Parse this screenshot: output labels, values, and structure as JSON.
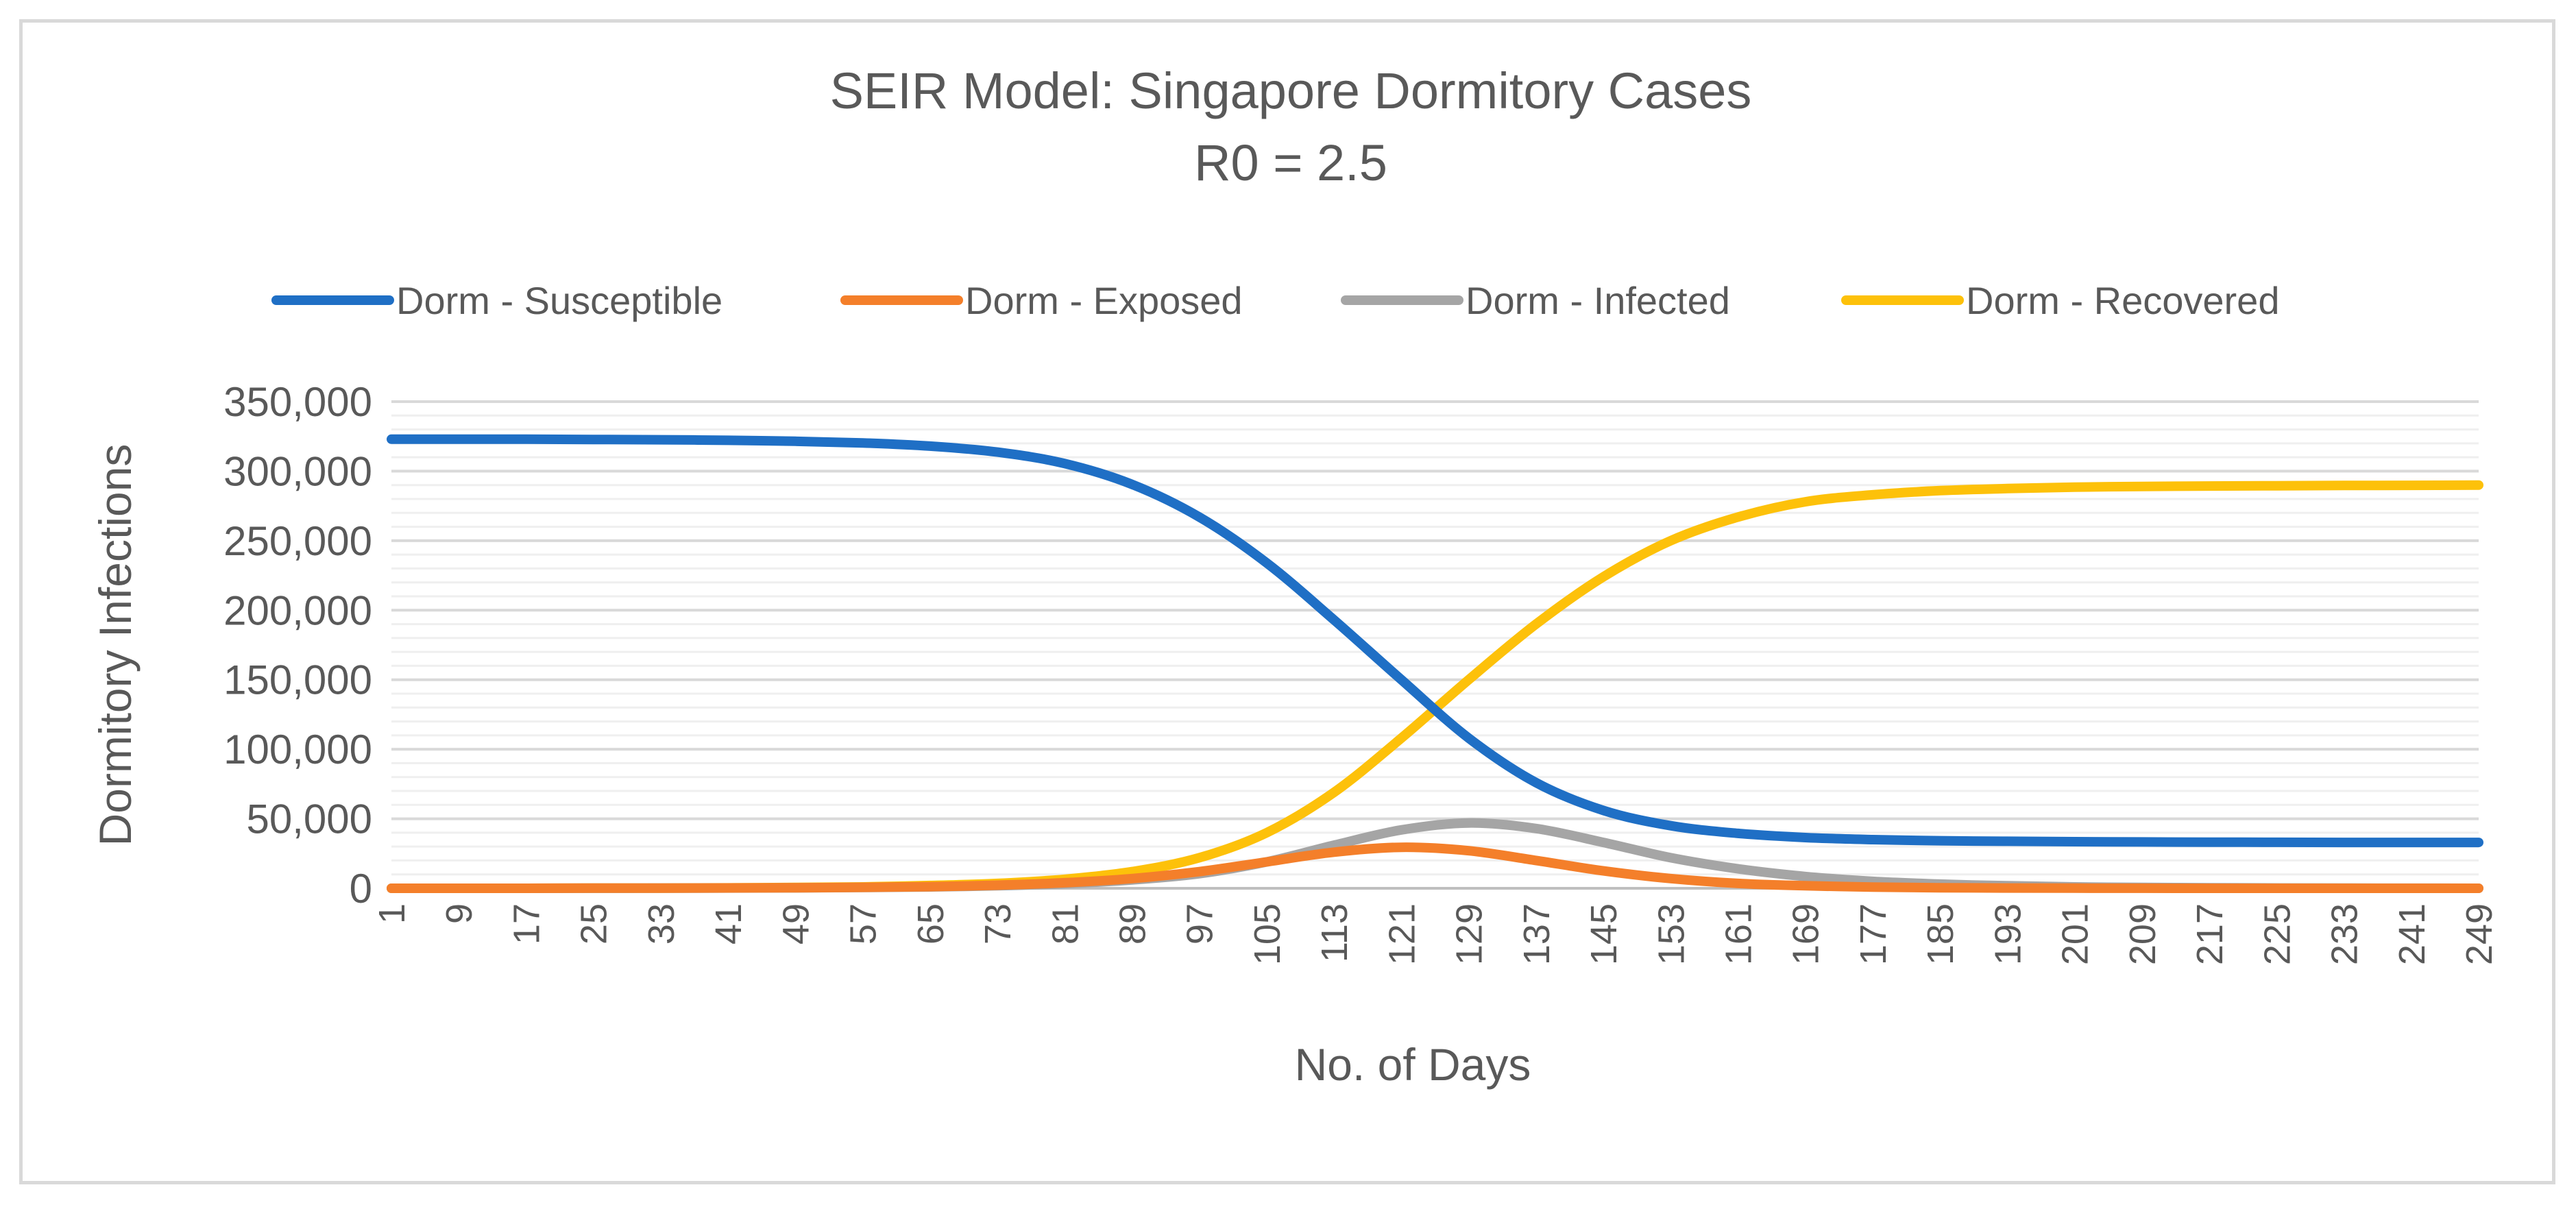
{
  "chart_data": {
    "type": "line",
    "title": "SEIR Model: Singapore Dormitory Cases",
    "subtitle": "R0 = 2.5",
    "xlabel": "No. of Days",
    "ylabel": "Dormitory Infections",
    "ylim": [
      0,
      350000
    ],
    "xlim": [
      1,
      249
    ],
    "legend_position": "top",
    "grid": true,
    "y_ticks": [
      0,
      50000,
      100000,
      150000,
      200000,
      250000,
      300000,
      350000
    ],
    "y_tick_labels": [
      "0",
      "50,000",
      "100,000",
      "150,000",
      "200,000",
      "250,000",
      "300,000",
      "350,000"
    ],
    "x_ticks": [
      1,
      9,
      17,
      25,
      33,
      41,
      49,
      57,
      65,
      73,
      81,
      89,
      97,
      105,
      113,
      121,
      129,
      137,
      145,
      153,
      161,
      169,
      177,
      185,
      193,
      201,
      209,
      217,
      225,
      233,
      241,
      249
    ],
    "x_tick_labels": [
      "1",
      "9",
      "17",
      "25",
      "33",
      "41",
      "49",
      "57",
      "65",
      "73",
      "81",
      "89",
      "97",
      "105",
      "113",
      "121",
      "129",
      "137",
      "145",
      "153",
      "161",
      "169",
      "177",
      "185",
      "193",
      "201",
      "209",
      "217",
      "225",
      "233",
      "241",
      "249"
    ],
    "series": [
      {
        "name": "Dorm - Susceptible",
        "color": "#1f6fc5",
        "x": [
          1,
          9,
          17,
          25,
          33,
          41,
          49,
          57,
          65,
          73,
          81,
          89,
          97,
          105,
          113,
          121,
          129,
          137,
          145,
          153,
          161,
          169,
          177,
          185,
          193,
          201,
          209,
          217,
          225,
          233,
          241,
          249
        ],
        "values": [
          323000,
          323000,
          323000,
          322800,
          322600,
          322200,
          321500,
          320300,
          318000,
          313700,
          305500,
          290500,
          267000,
          234000,
          193000,
          150000,
          108000,
          76000,
          56000,
          45000,
          39500,
          36500,
          35000,
          34200,
          33800,
          33500,
          33300,
          33200,
          33100,
          33000,
          33000,
          33000
        ]
      },
      {
        "name": "Dorm - Exposed",
        "color": "#f47f2a",
        "x": [
          1,
          9,
          17,
          25,
          33,
          41,
          49,
          57,
          65,
          73,
          81,
          89,
          97,
          105,
          113,
          121,
          129,
          137,
          145,
          153,
          161,
          169,
          177,
          185,
          193,
          201,
          209,
          217,
          225,
          233,
          241,
          249
        ],
        "values": [
          0,
          0,
          0,
          100,
          150,
          250,
          400,
          700,
          1200,
          2200,
          4000,
          7000,
          12000,
          19000,
          26000,
          29500,
          27000,
          20000,
          12500,
          7000,
          3500,
          1800,
          900,
          400,
          200,
          100,
          50,
          0,
          0,
          0,
          0,
          0
        ]
      },
      {
        "name": "Dorm - Infected",
        "color": "#a5a5a5",
        "x": [
          1,
          9,
          17,
          25,
          33,
          41,
          49,
          57,
          65,
          73,
          81,
          89,
          97,
          105,
          113,
          121,
          129,
          137,
          145,
          153,
          161,
          169,
          177,
          185,
          193,
          201,
          209,
          217,
          225,
          233,
          241,
          249
        ],
        "values": [
          0,
          0,
          0,
          50,
          100,
          200,
          300,
          600,
          1000,
          1800,
          3300,
          6000,
          10500,
          19000,
          31000,
          42000,
          47000,
          43000,
          33000,
          22000,
          14000,
          8500,
          5000,
          3000,
          1800,
          1000,
          600,
          400,
          200,
          100,
          50,
          0
        ]
      },
      {
        "name": "Dorm - Recovered",
        "color": "#fdc10a",
        "x": [
          1,
          9,
          17,
          25,
          33,
          41,
          49,
          57,
          65,
          73,
          81,
          89,
          97,
          105,
          113,
          121,
          129,
          137,
          145,
          153,
          161,
          169,
          177,
          185,
          193,
          201,
          209,
          217,
          225,
          233,
          241,
          249
        ],
        "values": [
          0,
          0,
          0,
          100,
          150,
          300,
          600,
          1000,
          2000,
          3500,
          6500,
          12000,
          22000,
          40000,
          69000,
          108000,
          150000,
          190000,
          224000,
          250000,
          267000,
          278000,
          283000,
          286000,
          287500,
          288500,
          289000,
          289300,
          289500,
          289700,
          289800,
          290000
        ]
      }
    ]
  }
}
